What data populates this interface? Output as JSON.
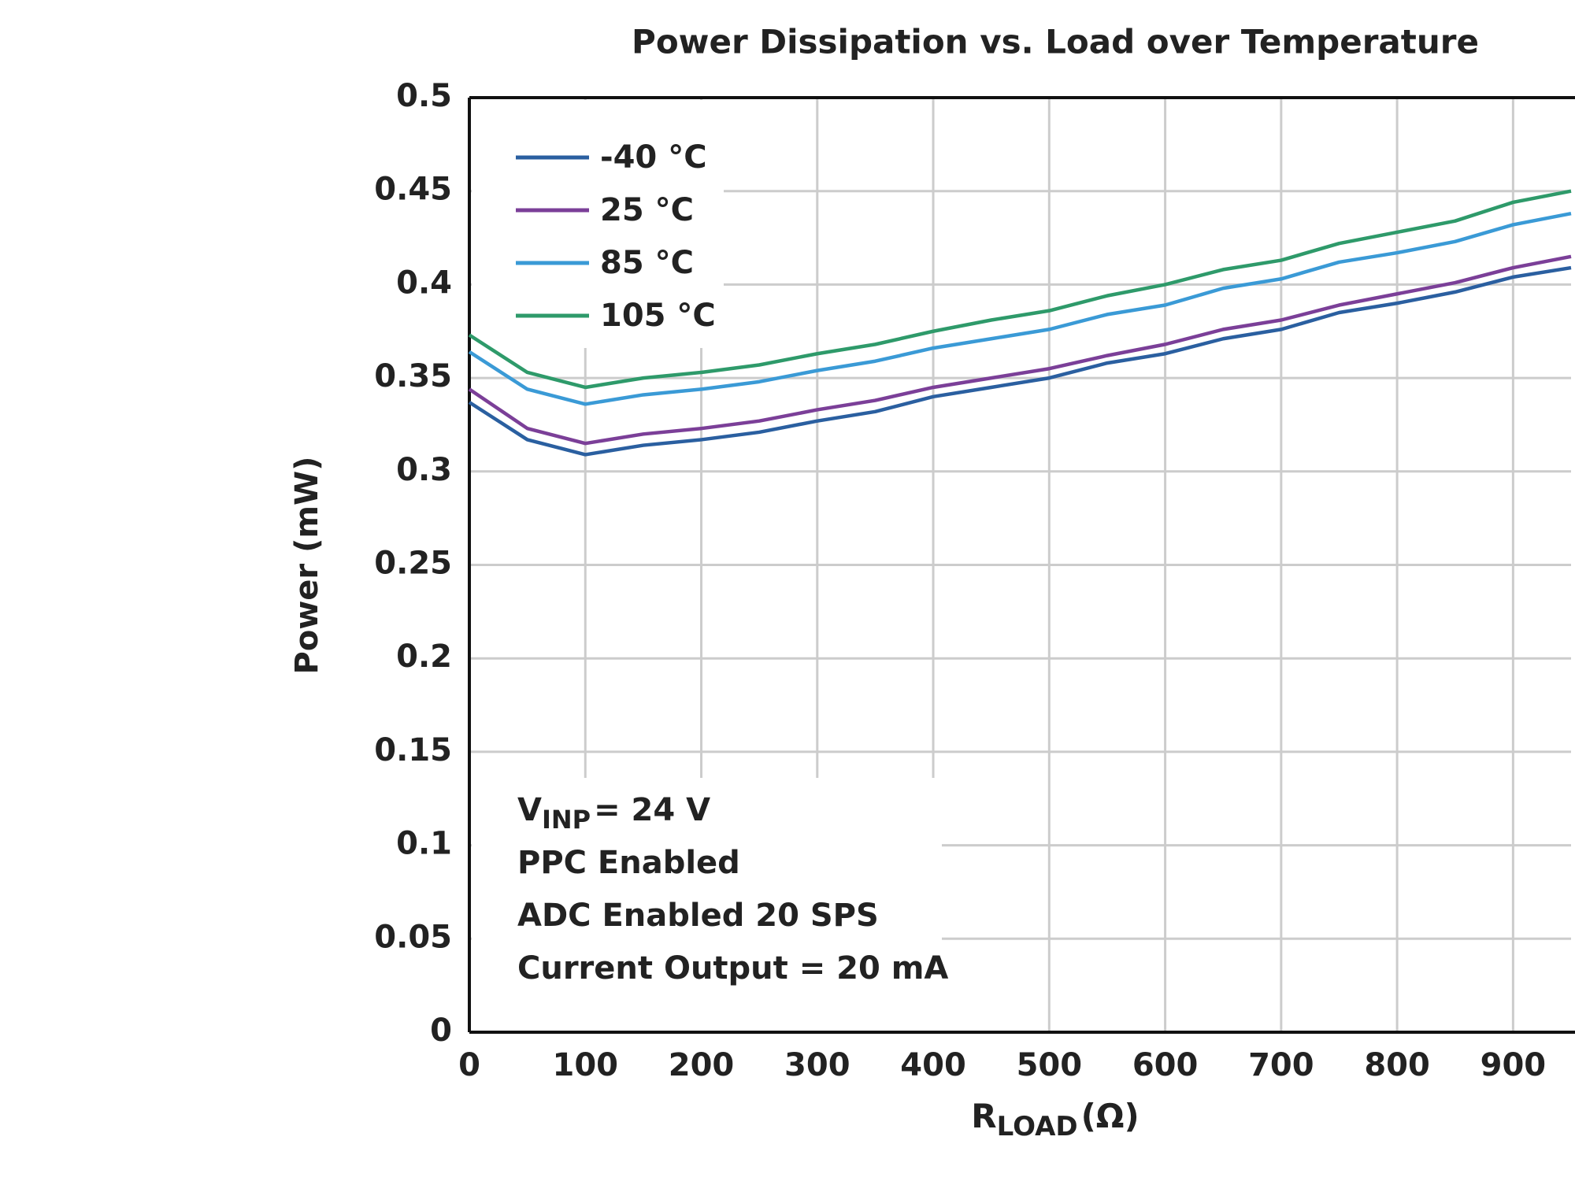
{
  "chart_data": {
    "type": "line",
    "title": "Power Dissipation vs. Load over Temperature",
    "x_label": {
      "main": "R",
      "sub": "LOAD",
      "tail": "(Ω)"
    },
    "y_label": "Power (mW)",
    "x": [
      0,
      50,
      100,
      150,
      200,
      250,
      300,
      350,
      400,
      450,
      500,
      550,
      600,
      650,
      700,
      750,
      800,
      850,
      900,
      950
    ],
    "series": [
      {
        "name": "-40 °C",
        "color": "#2a5fa0",
        "values": [
          0.337,
          0.317,
          0.309,
          0.314,
          0.317,
          0.321,
          0.327,
          0.332,
          0.34,
          0.345,
          0.35,
          0.358,
          0.363,
          0.371,
          0.376,
          0.385,
          0.39,
          0.396,
          0.404,
          0.409
        ]
      },
      {
        "name": "25 °C",
        "color": "#7b3f98",
        "values": [
          0.344,
          0.323,
          0.315,
          0.32,
          0.323,
          0.327,
          0.333,
          0.338,
          0.345,
          0.35,
          0.355,
          0.362,
          0.368,
          0.376,
          0.381,
          0.389,
          0.395,
          0.401,
          0.409,
          0.415
        ]
      },
      {
        "name": "85 °C",
        "color": "#3a9ad6",
        "values": [
          0.364,
          0.344,
          0.336,
          0.341,
          0.344,
          0.348,
          0.354,
          0.359,
          0.366,
          0.371,
          0.376,
          0.384,
          0.389,
          0.398,
          0.403,
          0.412,
          0.417,
          0.423,
          0.432,
          0.438
        ]
      },
      {
        "name": "105 °C",
        "color": "#2e9a6a",
        "values": [
          0.373,
          0.353,
          0.345,
          0.35,
          0.353,
          0.357,
          0.363,
          0.368,
          0.375,
          0.381,
          0.386,
          0.394,
          0.4,
          0.408,
          0.413,
          0.422,
          0.428,
          0.434,
          0.444,
          0.45
        ]
      }
    ],
    "xlim": [
      0,
      950
    ],
    "xticks": [
      0,
      100,
      200,
      300,
      400,
      500,
      600,
      700,
      800,
      900
    ],
    "ylim": [
      0,
      0.5
    ],
    "yticks": [
      0,
      0.05,
      0.1,
      0.15,
      0.2,
      0.25,
      0.3,
      0.35,
      0.4,
      0.45,
      0.5
    ],
    "grid": true,
    "legend": "upper-left",
    "conditions": {
      "vinp": {
        "main": "V",
        "sub": "INP",
        "tail": "= 24 V"
      },
      "lines": [
        "PPC Enabled",
        "ADC Enabled 20 SPS",
        "Current Output = 20 mA"
      ]
    }
  }
}
